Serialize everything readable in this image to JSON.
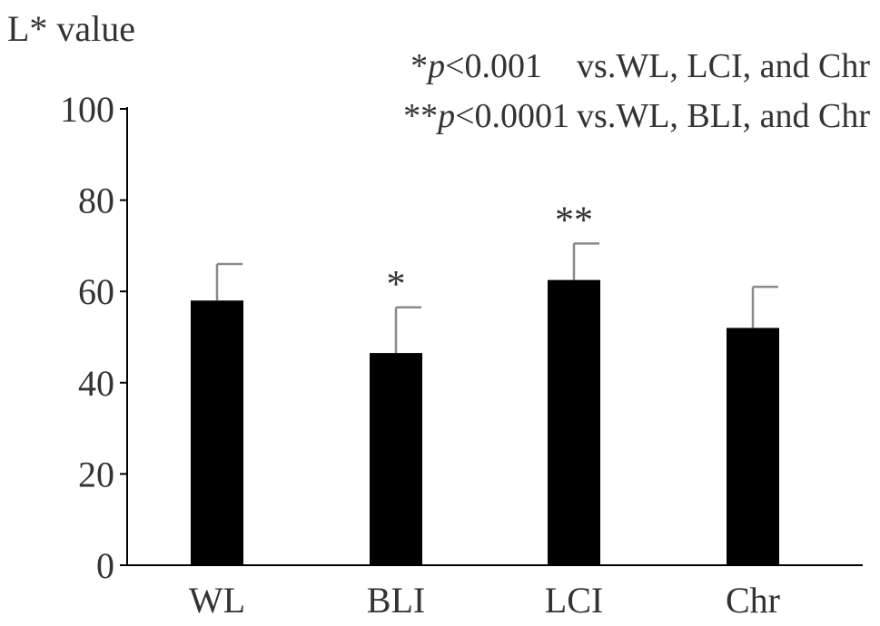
{
  "chart_data": {
    "type": "bar",
    "ylabel": "L* value",
    "categories": [
      "WL",
      "BLI",
      "LCI",
      "Chr"
    ],
    "values": [
      58,
      46.5,
      62.5,
      52
    ],
    "error_upper": [
      8,
      10,
      8,
      9
    ],
    "significance": [
      "",
      "*",
      "**",
      ""
    ],
    "ylim": [
      0,
      100
    ],
    "yticks": [
      0,
      20,
      40,
      60,
      80,
      100
    ],
    "grid": false,
    "legend": "none",
    "bar_color": "#000000",
    "axis_color": "#000000",
    "error_bar_color": "#8a8a8a",
    "annotations": [
      {
        "marker": "*",
        "p_symbol": "p",
        "p_text": "<0.001",
        "comparison": "vs.WL, LCI, and Chr"
      },
      {
        "marker": "**",
        "p_symbol": "p",
        "p_text": "<0.0001",
        "comparison": "vs.WL, BLI, and Chr"
      }
    ]
  }
}
